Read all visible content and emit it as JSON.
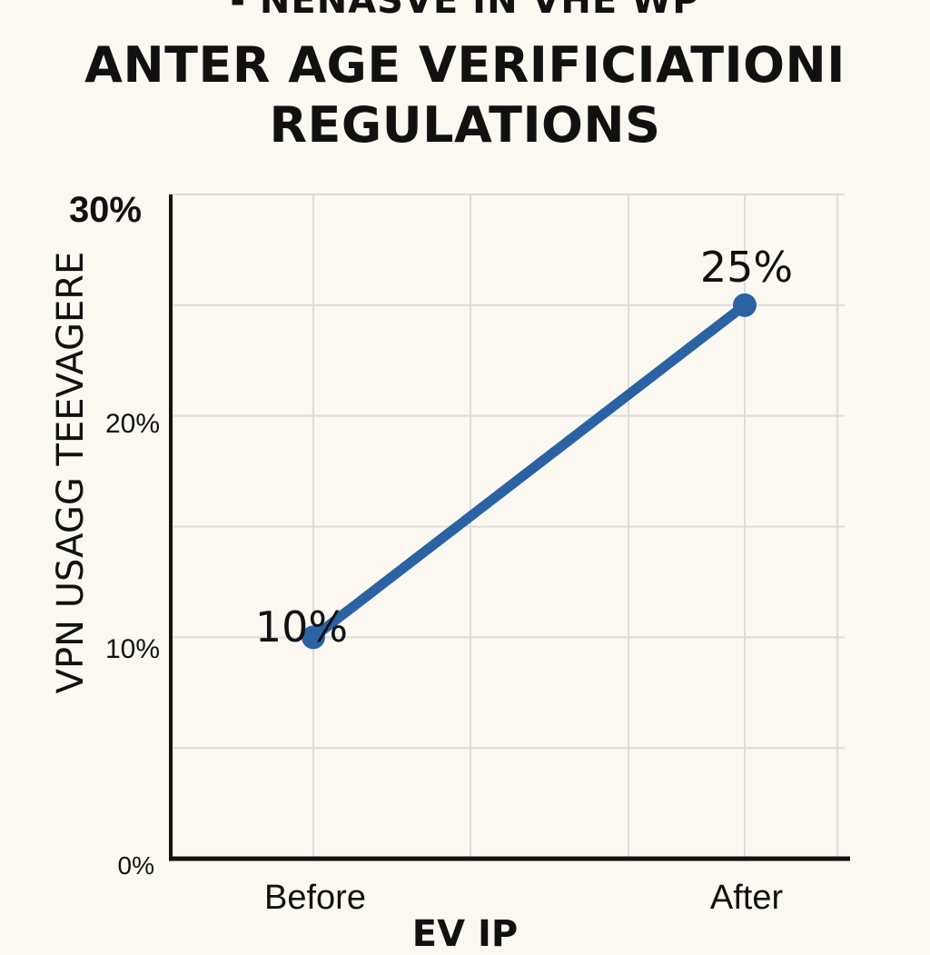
{
  "chart_data": {
    "type": "line",
    "title_top": "- NENASVE IN VHE WP",
    "title": [
      "ANTER AGE VERIFICIATIONI",
      "REGULATIONS"
    ],
    "ylabel": "VPN USAGG TEEVAGERE",
    "xlabel": "EV IP",
    "categories": [
      "Before",
      "After"
    ],
    "series": [
      {
        "values": [
          10,
          25
        ],
        "color": "#2b62a3"
      }
    ],
    "data_labels": [
      "10%",
      "25%"
    ],
    "y_ticks": [
      {
        "value": 0,
        "label": "0%"
      },
      {
        "value": 10,
        "label": "10%"
      },
      {
        "value": 20,
        "label": "20%"
      },
      {
        "value": 30,
        "label": "30%"
      }
    ],
    "ylim": [
      0,
      30
    ],
    "grid": true
  }
}
